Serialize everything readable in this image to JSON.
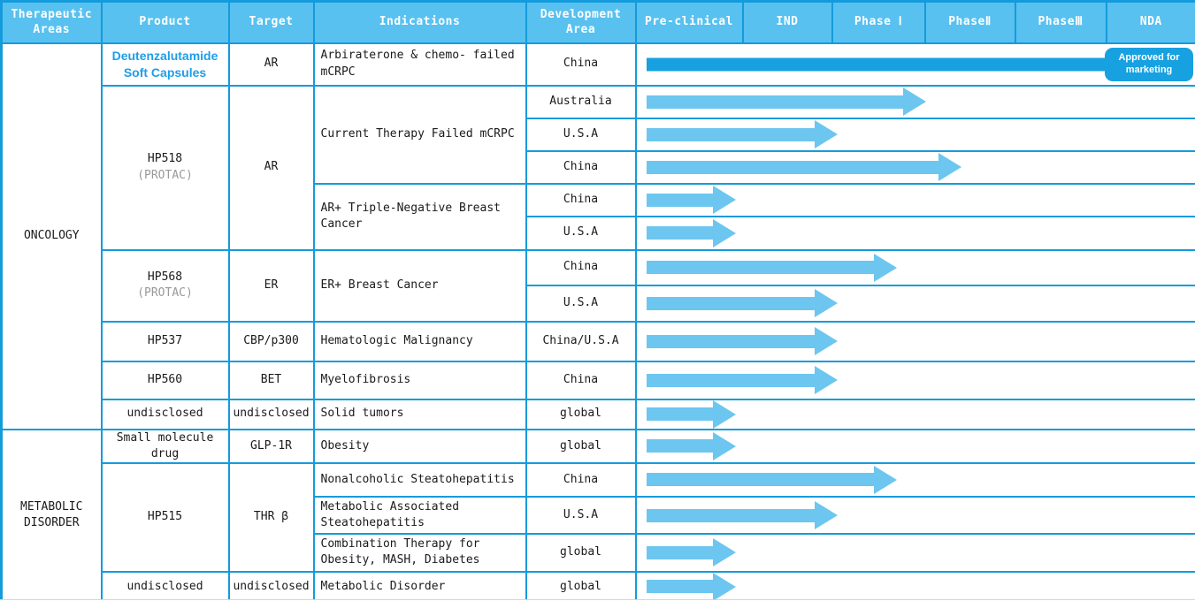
{
  "header": {
    "therapeutic_areas": "Therapeutic Areas",
    "product": "Product",
    "target": "Target",
    "indications": "Indications",
    "development_area": "Development Area",
    "phases": [
      "Pre-clinical",
      "IND",
      "Phase Ⅰ",
      "PhaseⅡ",
      "PhaseⅢ",
      "NDA"
    ]
  },
  "approved_badge": "Approved for marketing",
  "areas": {
    "oncology": "ONCOLOGY",
    "metabolic": "METABOLIC DISORDER"
  },
  "products": {
    "deutenzalutamide": {
      "name": "Deutenzalutamide Soft Capsules",
      "target": "AR"
    },
    "hp518": {
      "name": "HP518",
      "sub": "(PROTAC)",
      "target": "AR"
    },
    "hp568": {
      "name": "HP568",
      "sub": "(PROTAC)",
      "target": "ER"
    },
    "hp537": {
      "name": "HP537",
      "target": "CBP/p300"
    },
    "hp560": {
      "name": "HP560",
      "target": "BET"
    },
    "undisclosed_oncology": {
      "name": "undisclosed",
      "target": "undisclosed"
    },
    "small_molecule": {
      "name": "Small molecule drug",
      "target": "GLP-1R"
    },
    "hp515": {
      "name": "HP515",
      "target": "THR β"
    },
    "undisclosed_metabolic": {
      "name": "undisclosed",
      "target": "undisclosed"
    }
  },
  "indications": {
    "mcrpc_failed": "Arbiraterone & chemo- failed mCRPC",
    "current_therapy": "Current Therapy Failed mCRPC",
    "tnbc": "AR+ Triple-Negative Breast Cancer",
    "er_breast": "ER+ Breast Cancer",
    "hematologic": "Hematologic Malignancy",
    "myelofibrosis": "Myelofibrosis",
    "solid_tumors": "Solid tumors",
    "obesity": "Obesity",
    "nash": "Nonalcoholic Steatohepatitis",
    "mash": "Metabolic Associated Steatohepatitis",
    "combo": "Combination Therapy for Obesity, MASH, Diabetes",
    "metabolic_disorder": "Metabolic Disorder"
  },
  "rows": [
    {
      "dev_area": "China",
      "type": "bar",
      "progress": 0.837,
      "stage": "NDA - Approved for marketing"
    },
    {
      "dev_area": "Australia",
      "type": "arrow",
      "progress": 0.517,
      "stage": "Phase II"
    },
    {
      "dev_area": "U.S.A",
      "type": "arrow",
      "progress": 0.359,
      "stage": "Phase I"
    },
    {
      "dev_area": "China",
      "type": "arrow",
      "progress": 0.581,
      "stage": "Phase II"
    },
    {
      "dev_area": "China",
      "type": "arrow",
      "progress": 0.177,
      "stage": "Pre-clinical"
    },
    {
      "dev_area": "U.S.A",
      "type": "arrow",
      "progress": 0.177,
      "stage": "Pre-clinical"
    },
    {
      "dev_area": "China",
      "type": "arrow",
      "progress": 0.465,
      "stage": "Phase I"
    },
    {
      "dev_area": "U.S.A",
      "type": "arrow",
      "progress": 0.359,
      "stage": "Phase I"
    },
    {
      "dev_area": "China/U.S.A",
      "type": "arrow",
      "progress": 0.359,
      "stage": "Phase I"
    },
    {
      "dev_area": "China",
      "type": "arrow",
      "progress": 0.359,
      "stage": "Phase I"
    },
    {
      "dev_area": "global",
      "type": "arrow",
      "progress": 0.177,
      "stage": "Pre-clinical"
    },
    {
      "dev_area": "global",
      "type": "arrow",
      "progress": 0.177,
      "stage": "Pre-clinical"
    },
    {
      "dev_area": "China",
      "type": "arrow",
      "progress": 0.465,
      "stage": "Phase I"
    },
    {
      "dev_area": "U.S.A",
      "type": "arrow",
      "progress": 0.359,
      "stage": "Phase I"
    },
    {
      "dev_area": "global",
      "type": "arrow",
      "progress": 0.177,
      "stage": "Pre-clinical"
    },
    {
      "dev_area": "global",
      "type": "arrow",
      "progress": 0.177,
      "stage": "Pre-clinical"
    }
  ],
  "colors": {
    "border_blue": "#149BDB",
    "header_fill": "#58C1F0",
    "arrow_fill": "#6CC6F0",
    "bar_fill": "#17A1E0",
    "product_link_blue": "#1E9EE8",
    "sub_gray": "#999999"
  },
  "chart_data": {
    "type": "table",
    "columns": [
      "Therapeutic Areas",
      "Product",
      "Target",
      "Indications",
      "Development Area",
      "Pre-clinical",
      "IND",
      "Phase Ⅰ",
      "PhaseⅡ",
      "PhaseⅢ",
      "NDA"
    ],
    "phase_axis": [
      "Pre-clinical",
      "IND",
      "Phase Ⅰ",
      "PhaseⅡ",
      "PhaseⅢ",
      "NDA"
    ],
    "rows": [
      [
        "ONCOLOGY",
        "Deutenzalutamide Soft Capsules",
        "AR",
        "Arbiraterone & chemo- failed mCRPC",
        "China",
        "NDA - Approved for marketing",
        0.837
      ],
      [
        "ONCOLOGY",
        "HP518 (PROTAC)",
        "AR",
        "Current Therapy Failed mCRPC",
        "Australia",
        "Phase II",
        0.517
      ],
      [
        "ONCOLOGY",
        "HP518 (PROTAC)",
        "AR",
        "Current Therapy Failed mCRPC",
        "U.S.A",
        "Phase I",
        0.359
      ],
      [
        "ONCOLOGY",
        "HP518 (PROTAC)",
        "AR",
        "Current Therapy Failed mCRPC",
        "China",
        "Phase II",
        0.581
      ],
      [
        "ONCOLOGY",
        "HP518 (PROTAC)",
        "AR",
        "AR+ Triple-Negative Breast Cancer",
        "China",
        "Pre-clinical",
        0.177
      ],
      [
        "ONCOLOGY",
        "HP518 (PROTAC)",
        "AR",
        "AR+ Triple-Negative Breast Cancer",
        "U.S.A",
        "Pre-clinical",
        0.177
      ],
      [
        "ONCOLOGY",
        "HP568 (PROTAC)",
        "ER",
        "ER+ Breast Cancer",
        "China",
        "Phase I",
        0.465
      ],
      [
        "ONCOLOGY",
        "HP568 (PROTAC)",
        "ER",
        "ER+ Breast Cancer",
        "U.S.A",
        "Phase I",
        0.359
      ],
      [
        "ONCOLOGY",
        "HP537",
        "CBP/p300",
        "Hematologic Malignancy",
        "China/U.S.A",
        "Phase I",
        0.359
      ],
      [
        "ONCOLOGY",
        "HP560",
        "BET",
        "Myelofibrosis",
        "China",
        "Phase I",
        0.359
      ],
      [
        "ONCOLOGY",
        "undisclosed",
        "undisclosed",
        "Solid tumors",
        "global",
        "Pre-clinical",
        0.177
      ],
      [
        "METABOLIC DISORDER",
        "Small molecule drug",
        "GLP-1R",
        "Obesity",
        "global",
        "Pre-clinical",
        0.177
      ],
      [
        "METABOLIC DISORDER",
        "HP515",
        "THR β",
        "Nonalcoholic Steatohepatitis",
        "China",
        "Phase I",
        0.465
      ],
      [
        "METABOLIC DISORDER",
        "HP515",
        "THR β",
        "Metabolic Associated Steatohepatitis",
        "U.S.A",
        "Phase I",
        0.359
      ],
      [
        "METABOLIC DISORDER",
        "HP515",
        "THR β",
        "Combination Therapy for Obesity, MASH, Diabetes",
        "global",
        "Pre-clinical",
        0.177
      ],
      [
        "METABOLIC DISORDER",
        "undisclosed",
        "undisclosed",
        "Metabolic Disorder",
        "global",
        "Pre-clinical",
        0.177
      ]
    ]
  }
}
